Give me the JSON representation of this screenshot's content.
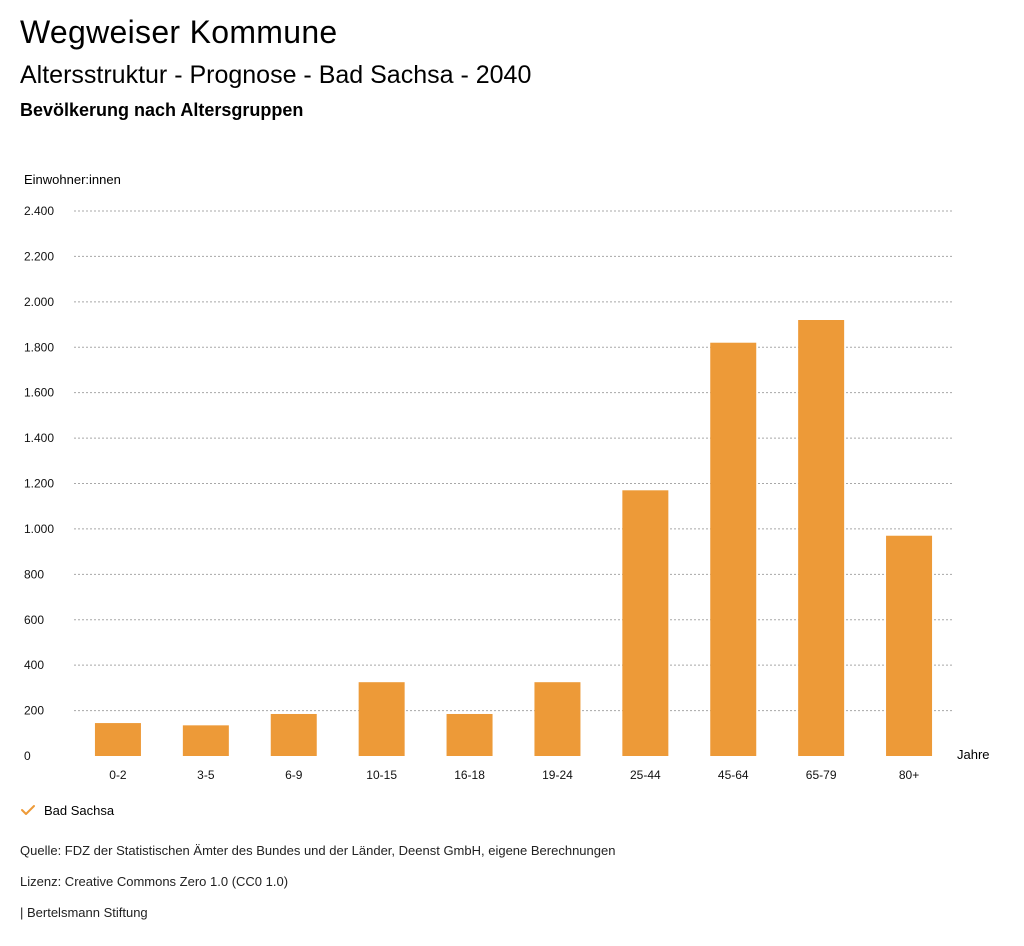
{
  "header": {
    "title": "Wegweiser Kommune",
    "subtitle": "Altersstruktur - Prognose - Bad Sachsa - 2040",
    "subsubtitle": "Bevölkerung nach Altersgruppen"
  },
  "chart_data": {
    "type": "bar",
    "ylabel": "Einwohner:innen",
    "xlabel": "Jahre",
    "categories": [
      "0-2",
      "3-5",
      "6-9",
      "10-15",
      "16-18",
      "19-24",
      "25-44",
      "45-64",
      "65-79",
      "80+"
    ],
    "series": [
      {
        "name": "Bad Sachsa",
        "values": [
          145,
          135,
          185,
          325,
          185,
          325,
          1170,
          1820,
          1920,
          970
        ],
        "color": "#ED9A38"
      }
    ],
    "ylim": [
      0,
      2400
    ],
    "yticks": [
      0,
      200,
      400,
      600,
      800,
      1000,
      1200,
      1400,
      1600,
      1800,
      2000,
      2200,
      2400
    ],
    "ytick_labels": [
      "0",
      "200",
      "400",
      "600",
      "800",
      "1.000",
      "1.200",
      "1.400",
      "1.600",
      "1.800",
      "2.000",
      "2.200",
      "2.400"
    ],
    "grid": true,
    "legend_position": "bottom-left"
  },
  "legend": {
    "label": "Bad Sachsa",
    "icon": "check-icon",
    "color": "#ED9A38"
  },
  "footer": {
    "source": "Quelle: FDZ der Statistischen Ämter des Bundes und der Länder, Deenst GmbH, eigene Berechnungen",
    "license": "Lizenz: Creative Commons Zero 1.0 (CC0 1.0)",
    "org": "| Bertelsmann Stiftung"
  }
}
